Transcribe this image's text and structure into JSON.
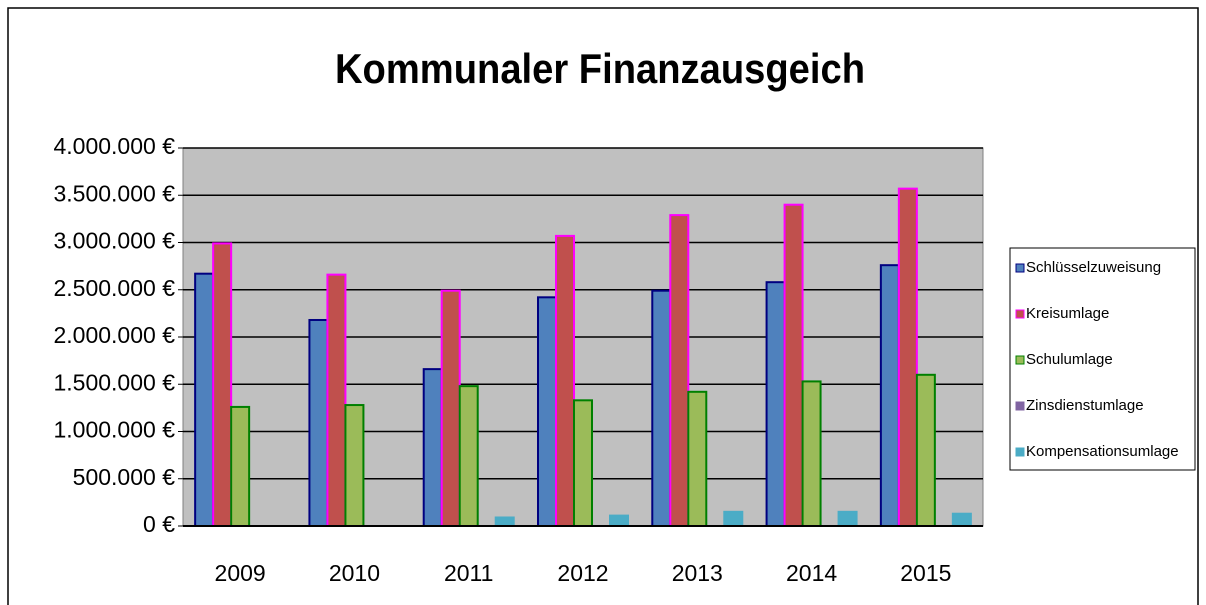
{
  "chart_data": {
    "type": "bar",
    "title": "Kommunaler Finanzausgeich",
    "categories": [
      "2009",
      "2010",
      "2011",
      "2012",
      "2013",
      "2014",
      "2015"
    ],
    "series": [
      {
        "name": "Schlüsselzuweisung",
        "color": "#4f81bd",
        "border": "#000080",
        "values": [
          2670000,
          2180000,
          1660000,
          2420000,
          2490000,
          2580000,
          2760000
        ]
      },
      {
        "name": "Kreisumlage",
        "color": "#c0504d",
        "border": "#ff00ff",
        "values": [
          2990000,
          2660000,
          2490000,
          3070000,
          3290000,
          3400000,
          3570000
        ]
      },
      {
        "name": "Schulumlage",
        "color": "#9bbb59",
        "border": "#008000",
        "values": [
          1260000,
          1280000,
          1480000,
          1330000,
          1420000,
          1530000,
          1600000
        ]
      },
      {
        "name": "Zinsdienstumlage",
        "color": "#8064a2",
        "border": "#8064a2",
        "values": [
          0,
          0,
          0,
          0,
          0,
          0,
          0
        ]
      },
      {
        "name": "Kompensationsumlage",
        "color": "#4bacc6",
        "border": "#4bacc6",
        "values": [
          0,
          0,
          90000,
          110000,
          150000,
          150000,
          130000
        ]
      }
    ],
    "ylim": [
      0,
      4000000
    ],
    "yticks": [
      {
        "value": 0,
        "label": "0 €"
      },
      {
        "value": 500000,
        "label": "500.000 €"
      },
      {
        "value": 1000000,
        "label": "1.000.000 €"
      },
      {
        "value": 1500000,
        "label": "1.500.000 €"
      },
      {
        "value": 2000000,
        "label": "2.000.000 €"
      },
      {
        "value": 2500000,
        "label": "2.500.000 €"
      },
      {
        "value": 3000000,
        "label": "3.000.000 €"
      },
      {
        "value": 3500000,
        "label": "3.500.000 €"
      },
      {
        "value": 4000000,
        "label": "4.000.000 €"
      }
    ],
    "grid": true,
    "legend": "right"
  }
}
